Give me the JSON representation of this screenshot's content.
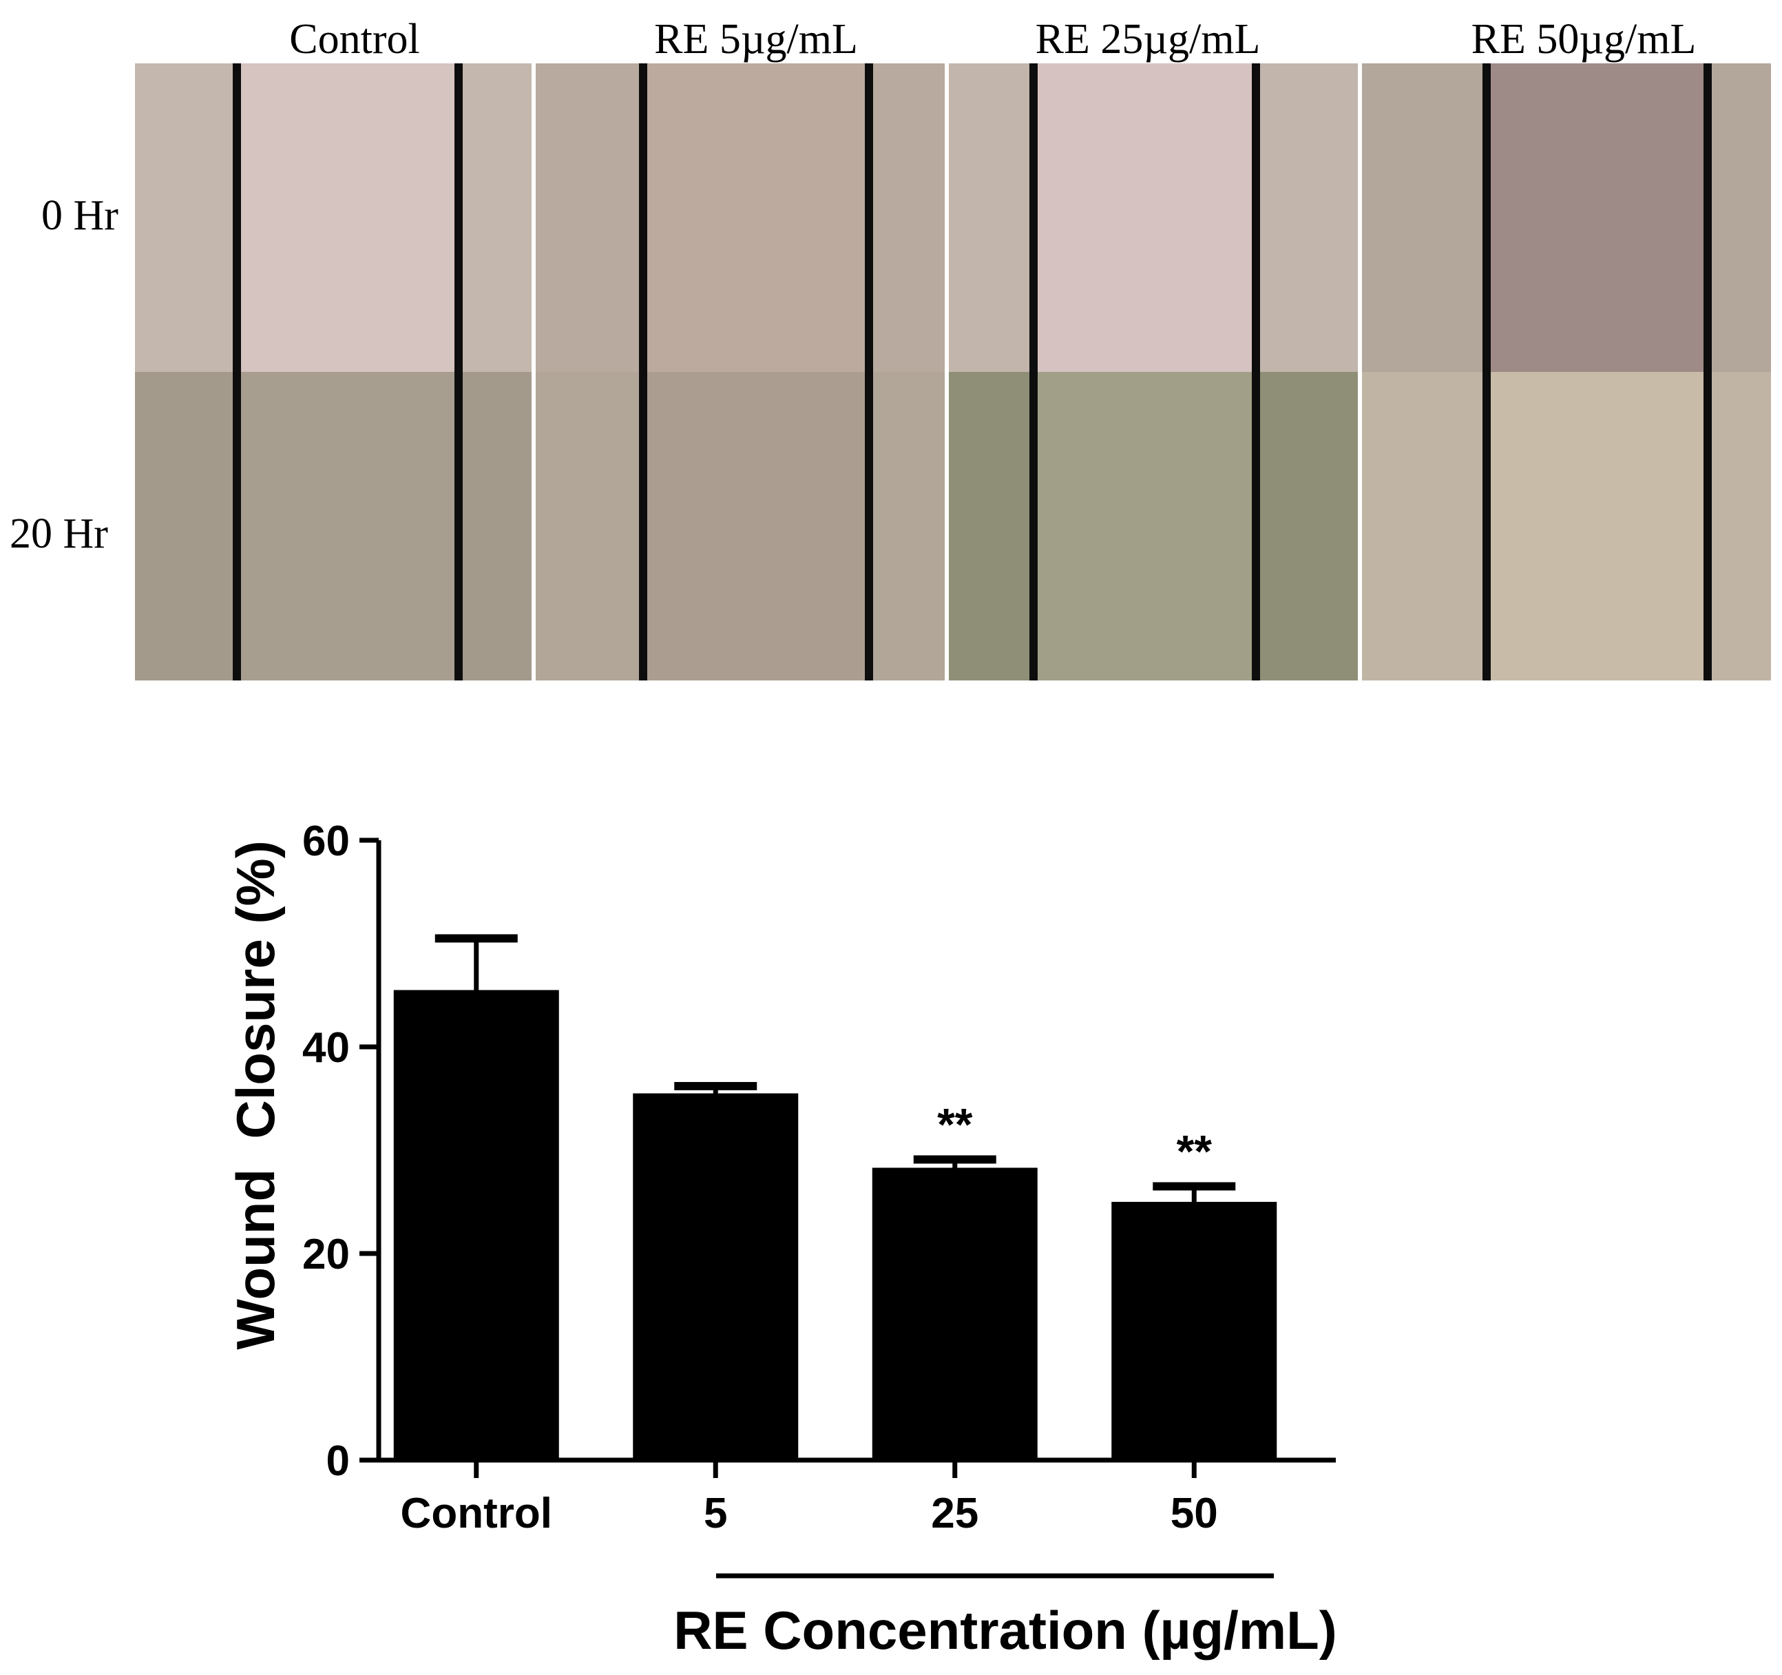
{
  "micrographs": {
    "column_titles": [
      "Control",
      "RE 5µg/mL",
      "RE 25µg/mL",
      "RE 50µg/mL"
    ],
    "row_titles": [
      "0 Hr",
      "20 Hr"
    ]
  },
  "chart_data": {
    "type": "bar",
    "categories": [
      "Control",
      "5",
      "25",
      "50"
    ],
    "values": [
      45.5,
      35.5,
      28.3,
      25.0
    ],
    "error_plus": [
      5.0,
      0.7,
      0.8,
      1.5
    ],
    "annotations": [
      "",
      "",
      "**",
      "**"
    ],
    "ylabel": "Wound  Closure (%)",
    "xlabel": "RE Concentration (µg/mL)",
    "ylim": [
      0,
      60
    ],
    "yticks": [
      "0",
      "20",
      "40",
      "60"
    ],
    "bar_color": "#000000",
    "grid": false
  }
}
